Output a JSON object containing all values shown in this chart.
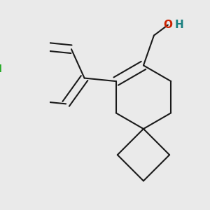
{
  "bg_color": "#eaeaea",
  "bond_color": "#1a1a1a",
  "bond_width": 1.5,
  "cl_color": "#22aa22",
  "o_color": "#cc2200",
  "h_color": "#1a8080",
  "font_size_atom": 10,
  "dbo": 0.04
}
